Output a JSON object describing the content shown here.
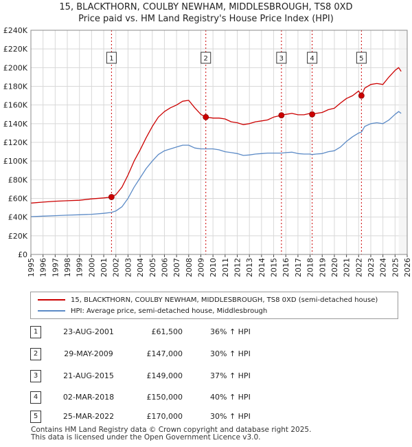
{
  "header": {
    "title": "15, BLACKTHORN, COULBY NEWHAM, MIDDLESBROUGH, TS8 0XD",
    "subtitle": "Price paid vs. HM Land Registry's House Price Index (HPI)"
  },
  "colors": {
    "property": "#cc0000",
    "hpi": "#5b8ac6",
    "sale_marker": "#cc0000"
  },
  "chart_data": {
    "type": "line",
    "title": "15, BLACKTHORN, COULBY NEWHAM, MIDDLESBROUGH, TS8 0XD",
    "subtitle": "Price paid vs. HM Land Registry's House Price Index (HPI)",
    "xlabel": "",
    "ylabel": "",
    "xlim": [
      1995,
      2026
    ],
    "ylim": [
      0,
      240000
    ],
    "grid": true,
    "y_ticks": [
      0,
      20000,
      40000,
      60000,
      80000,
      100000,
      120000,
      140000,
      160000,
      180000,
      200000,
      220000,
      240000
    ],
    "y_tick_labels": [
      "£0",
      "£20K",
      "£40K",
      "£60K",
      "£80K",
      "£100K",
      "£120K",
      "£140K",
      "£160K",
      "£180K",
      "£200K",
      "£220K",
      "£240K"
    ],
    "x_ticks": [
      1995,
      1996,
      1997,
      1998,
      1999,
      2000,
      2001,
      2002,
      2003,
      2004,
      2005,
      2006,
      2007,
      2008,
      2009,
      2010,
      2011,
      2012,
      2013,
      2014,
      2015,
      2016,
      2017,
      2018,
      2019,
      2020,
      2021,
      2022,
      2023,
      2024,
      2025,
      2026
    ],
    "x_tick_labels": [
      "1995",
      "1996",
      "1997",
      "1998",
      "1999",
      "2000",
      "2001",
      "2002",
      "2003",
      "2004",
      "2005",
      "2006",
      "2007",
      "2008",
      "2009",
      "2010",
      "2011",
      "2012",
      "2013",
      "2014",
      "2015",
      "2016",
      "2017",
      "2018",
      "2019",
      "2020",
      "2021",
      "2022",
      "2023",
      "2024",
      "2025",
      "2026"
    ],
    "legend_position": "below",
    "series": [
      {
        "name": "15, BLACKTHORN, COULBY NEWHAM, MIDDLESBROUGH, TS8 0XD (semi-detached house)",
        "color": "#cc0000",
        "x": [
          1995,
          1996,
          1997,
          1998,
          1999,
          2000,
          2001,
          2001.64,
          2002,
          2002.5,
          2003,
          2003.5,
          2004,
          2004.5,
          2005,
          2005.5,
          2006,
          2006.5,
          2007,
          2007.5,
          2008,
          2008.5,
          2009,
          2009.41,
          2010,
          2010.5,
          2011,
          2011.5,
          2012,
          2012.5,
          2013,
          2013.5,
          2014,
          2014.5,
          2015,
          2015.64,
          2016,
          2016.5,
          2017,
          2017.5,
          2018,
          2018.17,
          2018.5,
          2019,
          2019.5,
          2020,
          2020.5,
          2021,
          2021.5,
          2022,
          2022.23,
          2022.5,
          2023,
          2023.5,
          2024,
          2024.5,
          2025,
          2025.3,
          2025.5
        ],
        "values": [
          55000,
          56000,
          57000,
          57500,
          58000,
          59500,
          60500,
          61500,
          64000,
          72000,
          85000,
          100000,
          112000,
          125000,
          137000,
          147000,
          153000,
          157000,
          160000,
          164000,
          165000,
          157000,
          150000,
          147000,
          146000,
          146000,
          145000,
          142000,
          141000,
          139000,
          140000,
          142000,
          143000,
          144000,
          147000,
          149000,
          150000,
          151000,
          149500,
          149500,
          151000,
          150000,
          151000,
          152000,
          155000,
          156500,
          162000,
          167000,
          170000,
          175000,
          170000,
          178000,
          182000,
          183000,
          182000,
          190000,
          197000,
          200000,
          196000
        ]
      },
      {
        "name": "HPI: Average price, semi-detached house, Middlesbrough",
        "color": "#5b8ac6",
        "x": [
          1995,
          1996,
          1997,
          1998,
          1999,
          2000,
          2001,
          2001.64,
          2002,
          2002.5,
          2003,
          2003.5,
          2004,
          2004.5,
          2005,
          2005.5,
          2006,
          2006.5,
          2007,
          2007.5,
          2008,
          2008.5,
          2009,
          2009.41,
          2010,
          2010.5,
          2011,
          2011.5,
          2012,
          2012.5,
          2013,
          2013.5,
          2014,
          2014.5,
          2015,
          2015.64,
          2016,
          2016.5,
          2017,
          2017.5,
          2018,
          2018.17,
          2018.5,
          2019,
          2019.5,
          2020,
          2020.5,
          2021,
          2021.5,
          2022,
          2022.23,
          2022.5,
          2023,
          2023.5,
          2024,
          2024.5,
          2025,
          2025.3,
          2025.5
        ],
        "values": [
          40500,
          41000,
          41500,
          42000,
          42500,
          43000,
          44000,
          45000,
          46500,
          51000,
          60000,
          72000,
          82000,
          92000,
          100000,
          107000,
          111000,
          113000,
          115000,
          117000,
          117000,
          114000,
          113000,
          113000,
          113000,
          112000,
          110000,
          109000,
          108000,
          106000,
          106500,
          107500,
          108000,
          108500,
          108500,
          108500,
          109000,
          109500,
          108000,
          107500,
          107500,
          107000,
          107500,
          108000,
          110000,
          111000,
          115000,
          121000,
          126000,
          130000,
          131000,
          137000,
          140000,
          141000,
          140000,
          144000,
          150000,
          153000,
          151000
        ]
      }
    ],
    "sales": [
      {
        "label": "1",
        "x": 2001.64,
        "value": 61500
      },
      {
        "label": "2",
        "x": 2009.41,
        "value": 147000
      },
      {
        "label": "3",
        "x": 2015.64,
        "value": 149000
      },
      {
        "label": "4",
        "x": 2018.17,
        "value": 150000
      },
      {
        "label": "5",
        "x": 2022.23,
        "value": 170000
      }
    ]
  },
  "legend": {
    "property": "15, BLACKTHORN, COULBY NEWHAM, MIDDLESBROUGH, TS8 0XD (semi-detached house)",
    "hpi": "HPI: Average price, semi-detached house, Middlesbrough"
  },
  "transactions": [
    {
      "num": "1",
      "date": "23-AUG-2001",
      "price": "£61,500",
      "hpi": "36% ↑ HPI"
    },
    {
      "num": "2",
      "date": "29-MAY-2009",
      "price": "£147,000",
      "hpi": "30% ↑ HPI"
    },
    {
      "num": "3",
      "date": "21-AUG-2015",
      "price": "£149,000",
      "hpi": "37% ↑ HPI"
    },
    {
      "num": "4",
      "date": "02-MAR-2018",
      "price": "£150,000",
      "hpi": "40% ↑ HPI"
    },
    {
      "num": "5",
      "date": "25-MAR-2022",
      "price": "£170,000",
      "hpi": "30% ↑ HPI"
    }
  ],
  "footer": {
    "line1": "Contains HM Land Registry data © Crown copyright and database right 2025.",
    "line2": "This data is licensed under the Open Government Licence v3.0."
  }
}
